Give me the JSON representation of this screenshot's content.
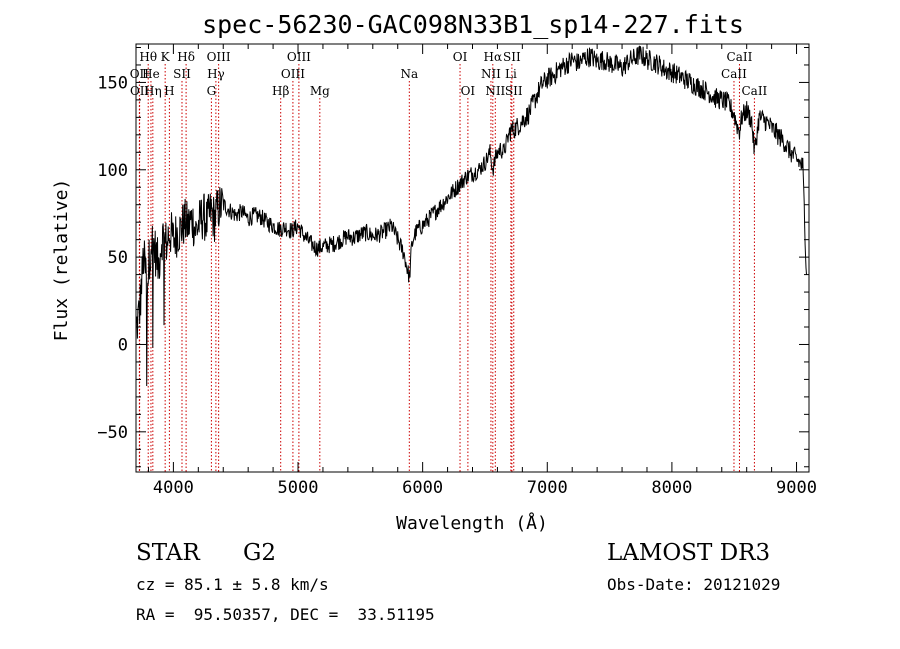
{
  "chart_data": {
    "type": "line",
    "title": "spec-56230-GAC098N33B1_sp14-227.fits",
    "xlabel": "Wavelength (Å)",
    "ylabel": "Flux (relative)",
    "xlim": [
      3700,
      9100
    ],
    "ylim": [
      -73,
      172
    ],
    "xticks": [
      4000,
      5000,
      6000,
      7000,
      8000,
      9000
    ],
    "yticks": [
      -50,
      0,
      50,
      100,
      150
    ],
    "xtick_labels": [
      "4000",
      "5000",
      "6000",
      "7000",
      "8000",
      "9000"
    ],
    "ytick_labels": [
      "−50",
      "0",
      "50",
      "100",
      "150"
    ],
    "series": [
      {
        "name": "flux",
        "x": [
          3700,
          3730,
          3760,
          3790,
          3820,
          3850,
          3880,
          3910,
          3940,
          3970,
          4000,
          4030,
          4060,
          4090,
          4120,
          4150,
          4180,
          4210,
          4240,
          4270,
          4300,
          4330,
          4360,
          4400,
          4450,
          4500,
          4550,
          4600,
          4650,
          4700,
          4750,
          4800,
          4850,
          4900,
          4950,
          5000,
          5050,
          5100,
          5150,
          5200,
          5250,
          5300,
          5350,
          5400,
          5450,
          5500,
          5550,
          5600,
          5650,
          5700,
          5750,
          5800,
          5850,
          5880,
          5895,
          5910,
          5930,
          5960,
          6000,
          6050,
          6100,
          6150,
          6200,
          6250,
          6300,
          6350,
          6400,
          6450,
          6500,
          6540,
          6563,
          6590,
          6620,
          6650,
          6700,
          6750,
          6800,
          6850,
          6900,
          6950,
          7000,
          7050,
          7100,
          7150,
          7200,
          7250,
          7300,
          7350,
          7400,
          7450,
          7500,
          7550,
          7600,
          7650,
          7700,
          7750,
          7800,
          7850,
          7900,
          7950,
          8000,
          8050,
          8100,
          8150,
          8200,
          8250,
          8300,
          8350,
          8400,
          8450,
          8498,
          8520,
          8542,
          8560,
          8600,
          8640,
          8662,
          8700,
          8750,
          8800,
          8850,
          8900,
          8950,
          9000,
          9050,
          9080
        ],
        "y": [
          8,
          20,
          50,
          35,
          60,
          55,
          45,
          62,
          58,
          65,
          60,
          64,
          66,
          70,
          68,
          72,
          65,
          70,
          74,
          70,
          76,
          72,
          78,
          80,
          77,
          74,
          76,
          72,
          74,
          73,
          70,
          68,
          66,
          67,
          65,
          68,
          62,
          58,
          55,
          56,
          57,
          58,
          60,
          62,
          61,
          63,
          64,
          62,
          63,
          65,
          68,
          60,
          52,
          42,
          38,
          55,
          62,
          66,
          68,
          72,
          76,
          80,
          84,
          88,
          92,
          96,
          98,
          100,
          104,
          110,
          100,
          108,
          112,
          110,
          122,
          124,
          128,
          132,
          140,
          148,
          152,
          154,
          158,
          160,
          163,
          161,
          164,
          165,
          162,
          163,
          161,
          160,
          158,
          162,
          164,
          166,
          163,
          162,
          160,
          157,
          156,
          154,
          152,
          150,
          148,
          146,
          144,
          141,
          140,
          138,
          132,
          126,
          122,
          130,
          134,
          128,
          110,
          130,
          128,
          124,
          120,
          116,
          110,
          106,
          102,
          40
        ]
      }
    ],
    "line_markers": [
      {
        "label": "Hθ",
        "wl": 3798,
        "row": 1
      },
      {
        "label": "OII",
        "wl": 3727,
        "row": 2
      },
      {
        "label": "OII",
        "wl": 3729,
        "row": 3
      },
      {
        "label": "He",
        "wl": 3820,
        "row": 2
      },
      {
        "label": "Hη",
        "wl": 3835,
        "row": 3
      },
      {
        "label": "K",
        "wl": 3934,
        "row": 1
      },
      {
        "label": "SII",
        "wl": 4069,
        "row": 2
      },
      {
        "label": "H",
        "wl": 3968,
        "row": 3
      },
      {
        "label": "Hδ",
        "wl": 4102,
        "row": 1
      },
      {
        "label": "OIII",
        "wl": 4363,
        "row": 1
      },
      {
        "label": "Hγ",
        "wl": 4341,
        "row": 2
      },
      {
        "label": "G",
        "wl": 4305,
        "row": 3
      },
      {
        "label": "Hβ",
        "wl": 4861,
        "row": 3
      },
      {
        "label": "OIII",
        "wl": 5007,
        "row": 1
      },
      {
        "label": "OIII",
        "wl": 4959,
        "row": 2
      },
      {
        "label": "Mg",
        "wl": 5175,
        "row": 3
      },
      {
        "label": "Na",
        "wl": 5893,
        "row": 2
      },
      {
        "label": "OI",
        "wl": 6300,
        "row": 1
      },
      {
        "label": "OI",
        "wl": 6363,
        "row": 3
      },
      {
        "label": "Hα",
        "wl": 6563,
        "row": 1
      },
      {
        "label": "NII",
        "wl": 6548,
        "row": 2
      },
      {
        "label": "NII",
        "wl": 6583,
        "row": 3
      },
      {
        "label": "SII",
        "wl": 6716,
        "row": 1
      },
      {
        "label": "Li",
        "wl": 6708,
        "row": 2
      },
      {
        "label": "SII",
        "wl": 6731,
        "row": 3
      },
      {
        "label": "CaII",
        "wl": 8542,
        "row": 1
      },
      {
        "label": "CaII",
        "wl": 8498,
        "row": 2
      },
      {
        "label": "CaII",
        "wl": 8662,
        "row": 3
      }
    ]
  },
  "info": {
    "object_class": "STAR",
    "subclass": "G2",
    "survey": "LAMOST DR3",
    "redshift": "cz = 85.1 ± 5.8 km/s",
    "obs_date": "Obs-Date: 20121029",
    "coords": "RA =  95.50357, DEC =  33.51195"
  },
  "colors": {
    "line_marker": "#cc0000",
    "spectrum": "#000000",
    "axes": "#000000"
  }
}
